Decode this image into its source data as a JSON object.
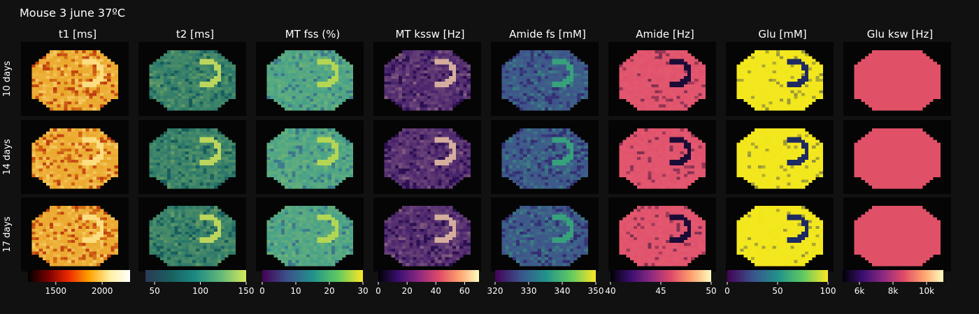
{
  "chart_data": {
    "type": "heatmap",
    "title": "Mouse 3 june 37ºC",
    "columns": [
      "t1 [ms]",
      "t2 [ms]",
      "MT fss (%)",
      "MT kssw [Hz]",
      "Amide fs [mM]",
      "Amide [Hz]",
      "Glu [mM]",
      "Glu ksw [Hz]"
    ],
    "rows": [
      "10 days",
      "14 days",
      "17 days"
    ],
    "colorbars": [
      {
        "colorscale": "hot",
        "range": [
          1200,
          2300
        ],
        "ticks": [
          {
            "v": 1500,
            "label": "1500"
          },
          {
            "v": 2000,
            "label": "2000"
          }
        ]
      },
      {
        "colorscale": "teal-yellow",
        "range": [
          40,
          150
        ],
        "ticks": [
          {
            "v": 50,
            "label": "50"
          },
          {
            "v": 100,
            "label": "100"
          },
          {
            "v": 150,
            "label": "150"
          }
        ]
      },
      {
        "colorscale": "viridis",
        "range": [
          0,
          30
        ],
        "ticks": [
          {
            "v": 0,
            "label": "0"
          },
          {
            "v": 10,
            "label": "10"
          },
          {
            "v": 20,
            "label": "20"
          },
          {
            "v": 30,
            "label": "30"
          }
        ]
      },
      {
        "colorscale": "magma",
        "range": [
          0,
          70
        ],
        "ticks": [
          {
            "v": 0,
            "label": "0"
          },
          {
            "v": 20,
            "label": "20"
          },
          {
            "v": 40,
            "label": "40"
          },
          {
            "v": 60,
            "label": "60"
          }
        ]
      },
      {
        "colorscale": "viridis",
        "range": [
          320,
          350
        ],
        "ticks": [
          {
            "v": 320,
            "label": "320"
          },
          {
            "v": 330,
            "label": "330"
          },
          {
            "v": 340,
            "label": "340"
          },
          {
            "v": 350,
            "label": "350"
          }
        ]
      },
      {
        "colorscale": "magma",
        "range": [
          40,
          50
        ],
        "ticks": [
          {
            "v": 40,
            "label": "40"
          },
          {
            "v": 45,
            "label": "45"
          },
          {
            "v": 50,
            "label": "50"
          }
        ]
      },
      {
        "colorscale": "viridis",
        "range": [
          0,
          100
        ],
        "ticks": [
          {
            "v": 0,
            "label": "0"
          },
          {
            "v": 50,
            "label": "50"
          },
          {
            "v": 100,
            "label": "100"
          }
        ]
      },
      {
        "colorscale": "magma",
        "range": [
          5000,
          11000
        ],
        "ticks": [
          {
            "v": 6000,
            "label": "6k"
          },
          {
            "v": 8000,
            "label": "8k"
          },
          {
            "v": 10000,
            "label": "10k"
          }
        ]
      }
    ],
    "map_colors": [
      {
        "base": "#e8a020",
        "low": "#b01808",
        "high": "#ffe890",
        "variance": 0.9
      },
      {
        "base": "#1d6f6c",
        "low": "#134848",
        "high": "#d8e85a",
        "variance": 0.5
      },
      {
        "base": "#3e9c8e",
        "low": "#3b4a8a",
        "high": "#c8e04a",
        "variance": 0.45
      },
      {
        "base": "#3a1566",
        "low": "#1c0b3c",
        "high": "#f0c8a8",
        "variance": 0.55
      },
      {
        "base": "#3f4a8c",
        "low": "#2a1a60",
        "high": "#35b079",
        "variance": 0.75
      },
      {
        "base": "#e0506a",
        "low": "#1a0c36",
        "high": "#e97080",
        "variance": 0.4
      },
      {
        "base": "#f2e61a",
        "low": "#1e2a62",
        "high": "#f7ec30",
        "variance": 0.3
      },
      {
        "base": "#e05168",
        "low": "#e05168",
        "high": "#e05168",
        "variance": 0
      }
    ],
    "grid": false
  }
}
